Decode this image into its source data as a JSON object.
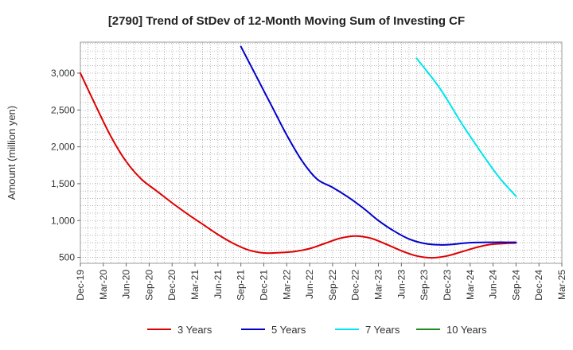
{
  "chart_data": {
    "type": "line",
    "title": "[2790]  Trend of StDev of 12-Month Moving Sum of Investing CF",
    "ylabel": "Amount (million yen)",
    "xlabel": "",
    "x_start": "2019-12",
    "x_end": "2025-03",
    "ylim": [
      420,
      3420
    ],
    "y_ticks": [
      500,
      1000,
      1500,
      2000,
      2500,
      3000
    ],
    "y_tick_labels": [
      "500",
      "1,000",
      "1,500",
      "2,000",
      "2,500",
      "3,000"
    ],
    "x_tick_labels": [
      "Dec-19",
      "Mar-20",
      "Jun-20",
      "Sep-20",
      "Dec-20",
      "Mar-21",
      "Jun-21",
      "Sep-21",
      "Dec-21",
      "Mar-22",
      "Jun-22",
      "Sep-22",
      "Dec-22",
      "Mar-23",
      "Jun-23",
      "Sep-23",
      "Dec-23",
      "Mar-24",
      "Jun-24",
      "Sep-24",
      "Dec-24",
      "Mar-25"
    ],
    "grid": true,
    "legend_position": "bottom",
    "series": [
      {
        "name": "3 Years",
        "color": "#dd0000",
        "points": [
          [
            "2019-12",
            3000
          ],
          [
            "2020-02",
            2560
          ],
          [
            "2020-04",
            2140
          ],
          [
            "2020-06",
            1800
          ],
          [
            "2020-08",
            1560
          ],
          [
            "2020-10",
            1400
          ],
          [
            "2020-12",
            1240
          ],
          [
            "2021-02",
            1090
          ],
          [
            "2021-04",
            950
          ],
          [
            "2021-06",
            810
          ],
          [
            "2021-08",
            690
          ],
          [
            "2021-10",
            600
          ],
          [
            "2021-12",
            560
          ],
          [
            "2022-02",
            565
          ],
          [
            "2022-04",
            580
          ],
          [
            "2022-06",
            620
          ],
          [
            "2022-08",
            690
          ],
          [
            "2022-10",
            760
          ],
          [
            "2022-12",
            790
          ],
          [
            "2023-02",
            760
          ],
          [
            "2023-04",
            680
          ],
          [
            "2023-06",
            590
          ],
          [
            "2023-08",
            520
          ],
          [
            "2023-10",
            495
          ],
          [
            "2023-12",
            520
          ],
          [
            "2024-02",
            580
          ],
          [
            "2024-04",
            640
          ],
          [
            "2024-06",
            680
          ],
          [
            "2024-09",
            695
          ]
        ]
      },
      {
        "name": "5 Years",
        "color": "#0000cc",
        "points": [
          [
            "2021-09",
            3360
          ],
          [
            "2021-11",
            2960
          ],
          [
            "2022-01",
            2560
          ],
          [
            "2022-03",
            2160
          ],
          [
            "2022-05",
            1810
          ],
          [
            "2022-07",
            1560
          ],
          [
            "2022-09",
            1450
          ],
          [
            "2022-11",
            1320
          ],
          [
            "2023-01",
            1170
          ],
          [
            "2023-03",
            1000
          ],
          [
            "2023-05",
            860
          ],
          [
            "2023-07",
            750
          ],
          [
            "2023-09",
            690
          ],
          [
            "2023-11",
            670
          ],
          [
            "2024-01",
            680
          ],
          [
            "2024-03",
            700
          ],
          [
            "2024-06",
            705
          ],
          [
            "2024-09",
            705
          ]
        ]
      },
      {
        "name": "7 Years",
        "color": "#00e5ee",
        "points": [
          [
            "2023-08",
            3200
          ],
          [
            "2023-11",
            2800
          ],
          [
            "2024-02",
            2300
          ],
          [
            "2024-05",
            1840
          ],
          [
            "2024-07",
            1560
          ],
          [
            "2024-09",
            1330
          ]
        ]
      },
      {
        "name": "10 Years",
        "color": "#228822",
        "points": []
      }
    ]
  }
}
